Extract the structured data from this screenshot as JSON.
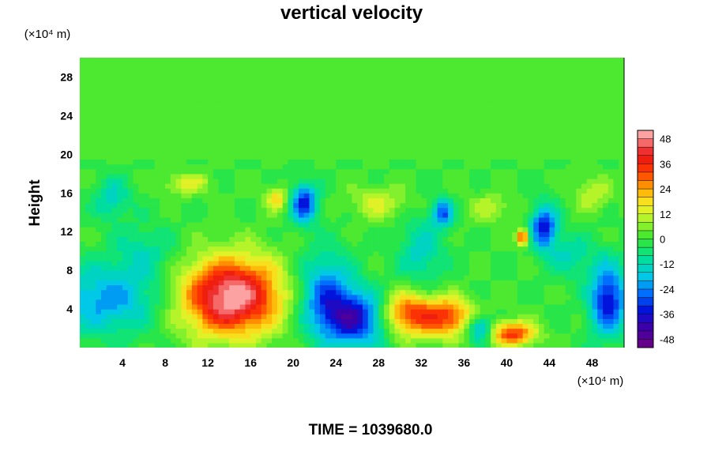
{
  "chart_data": {
    "type": "heatmap",
    "title": "vertical velocity",
    "ylabel": "Height",
    "x_unit": "(×10⁴ m)",
    "y_unit": "(×10⁴ m)",
    "footer": "TIME = 1039680.0",
    "xlim": [
      0,
      51
    ],
    "ylim": [
      0,
      30
    ],
    "x_ticks": [
      4,
      8,
      12,
      16,
      20,
      24,
      28,
      32,
      36,
      40,
      44,
      48
    ],
    "y_ticks": [
      4,
      8,
      12,
      16,
      20,
      24,
      28
    ],
    "colorbar": {
      "ticks": [
        48,
        36,
        24,
        12,
        0,
        -12,
        -24,
        -36,
        -48
      ],
      "range": [
        -52,
        52
      ],
      "levels": 26
    },
    "background_value": 0,
    "features": [
      {
        "x": 14.5,
        "y": 5.5,
        "sx": 3.2,
        "sy": 2.8,
        "value": 44
      },
      {
        "x": 13.0,
        "y": 4.5,
        "sx": 3.0,
        "sy": 2.5,
        "value": 10
      },
      {
        "x": 26.0,
        "y": 3.0,
        "sx": 2.2,
        "sy": 2.0,
        "value": -36
      },
      {
        "x": 23.0,
        "y": 5.5,
        "sx": 1.8,
        "sy": 3.0,
        "value": -26
      },
      {
        "x": 30.5,
        "y": 3.5,
        "sx": 1.8,
        "sy": 1.6,
        "value": 34
      },
      {
        "x": 34.5,
        "y": 3.2,
        "sx": 1.8,
        "sy": 1.4,
        "value": 32
      },
      {
        "x": 40.5,
        "y": 1.5,
        "sx": 1.6,
        "sy": 0.9,
        "value": 34
      },
      {
        "x": 37.5,
        "y": 2.0,
        "sx": 0.9,
        "sy": 1.0,
        "value": -28
      },
      {
        "x": 49.5,
        "y": 5.0,
        "sx": 1.2,
        "sy": 2.6,
        "value": -36
      },
      {
        "x": 2.5,
        "y": 5.0,
        "sx": 3.5,
        "sy": 2.5,
        "value": -22
      },
      {
        "x": 21.0,
        "y": 15.0,
        "sx": 0.9,
        "sy": 1.4,
        "value": -34
      },
      {
        "x": 43.5,
        "y": 12.5,
        "sx": 0.9,
        "sy": 1.6,
        "value": -34
      },
      {
        "x": 34.0,
        "y": 14.0,
        "sx": 0.7,
        "sy": 1.0,
        "value": -28
      },
      {
        "x": 41.5,
        "y": 11.5,
        "sx": 0.4,
        "sy": 0.6,
        "value": 36
      },
      {
        "x": 18.5,
        "y": 15.5,
        "sx": 0.8,
        "sy": 0.9,
        "value": 18
      },
      {
        "x": 10.0,
        "y": 17.0,
        "sx": 1.5,
        "sy": 0.8,
        "value": 14
      },
      {
        "x": 28.0,
        "y": 15.0,
        "sx": 2.0,
        "sy": 1.2,
        "value": 12
      },
      {
        "x": 32.0,
        "y": 10.0,
        "sx": 1.5,
        "sy": 2.5,
        "value": -14
      },
      {
        "x": 6.0,
        "y": 10.0,
        "sx": 2.0,
        "sy": 2.0,
        "value": -10
      },
      {
        "x": 46.0,
        "y": 9.5,
        "sx": 1.5,
        "sy": 1.5,
        "value": -12
      },
      {
        "x": 3.0,
        "y": 15.5,
        "sx": 1.2,
        "sy": 1.5,
        "value": -14
      },
      {
        "x": 48.0,
        "y": 16.0,
        "sx": 1.2,
        "sy": 1.2,
        "value": 12
      },
      {
        "x": 38.5,
        "y": 14.5,
        "sx": 1.5,
        "sy": 1.0,
        "value": 10
      }
    ]
  }
}
